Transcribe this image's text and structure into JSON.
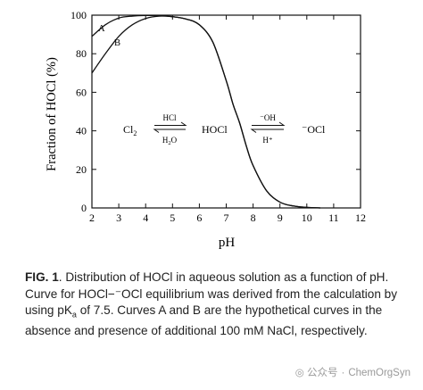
{
  "chart_data": {
    "type": "line",
    "xlabel": "pH",
    "ylabel": "Fraction of HOCl (%)",
    "xlim": [
      2,
      12
    ],
    "ylim": [
      0,
      100
    ],
    "xticks": [
      2,
      3,
      4,
      5,
      6,
      7,
      8,
      9,
      10,
      11,
      12
    ],
    "yticks": [
      0,
      20,
      40,
      60,
      80,
      100
    ],
    "grid": false,
    "series": [
      {
        "name": "A",
        "x": [
          2,
          2.5,
          3,
          3.5,
          4,
          4.5,
          5,
          5.5,
          6,
          6.5,
          7,
          7.25,
          7.5,
          7.75,
          8,
          8.5,
          9,
          9.5,
          10,
          10.5
        ],
        "y": [
          89,
          95,
          98.5,
          99.5,
          99.8,
          99.8,
          99.2,
          98,
          95,
          86,
          66,
          54,
          44,
          32,
          22,
          9,
          3,
          1,
          0.3,
          0
        ]
      },
      {
        "name": "B",
        "x": [
          2,
          2.5,
          3,
          3.5,
          4,
          4.5,
          5,
          5.5,
          6,
          6.5,
          7,
          7.25,
          7.5,
          7.75,
          8,
          8.5,
          9,
          9.5,
          10,
          10.5
        ],
        "y": [
          70,
          80,
          89,
          95,
          98.3,
          99.5,
          99.2,
          98,
          95,
          86,
          66,
          54,
          44,
          32,
          22,
          9,
          3,
          1,
          0.3,
          0
        ]
      }
    ],
    "annotations": {
      "species_left": "Cl",
      "species_left_sub": "2",
      "species_mid": "HOCl",
      "species_right": "⁻OCl",
      "arrow1_top": "HCl",
      "arrow1_bottom": "H",
      "arrow1_bottom_sub": "2",
      "arrow1_bottom_tail": "O",
      "arrow2_top": "⁻OH",
      "arrow2_bottom": "H⁺"
    }
  },
  "caption": {
    "label": "FIG. 1",
    "text": ". Distribution of HOCl in aqueous solution as a function of pH. Curve for HOCl−⁻OCl equilibrium was derived from the calculation by using pK",
    "text_sub": "a",
    "text_tail": " of 7.5. Curves A and B are the hypothetical curves in the absence and presence of additional 100 mM NaCl, respectively."
  },
  "watermark": {
    "source": "公众号",
    "author": "ChemOrgSyn"
  }
}
